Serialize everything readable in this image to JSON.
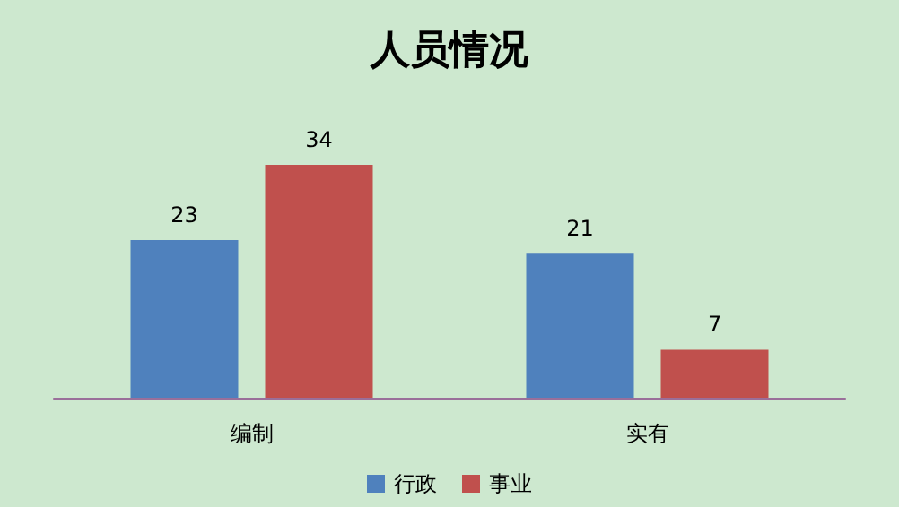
{
  "chart_data": {
    "type": "bar",
    "title": "人员情况",
    "categories": [
      "编制",
      "实有"
    ],
    "series": [
      {
        "name": "行政",
        "color": "#4f81bd",
        "values": [
          23,
          21
        ]
      },
      {
        "name": "事业",
        "color": "#c0504d",
        "values": [
          34,
          7
        ]
      }
    ],
    "data_labels": true,
    "legend": "bottom",
    "grid": false
  }
}
